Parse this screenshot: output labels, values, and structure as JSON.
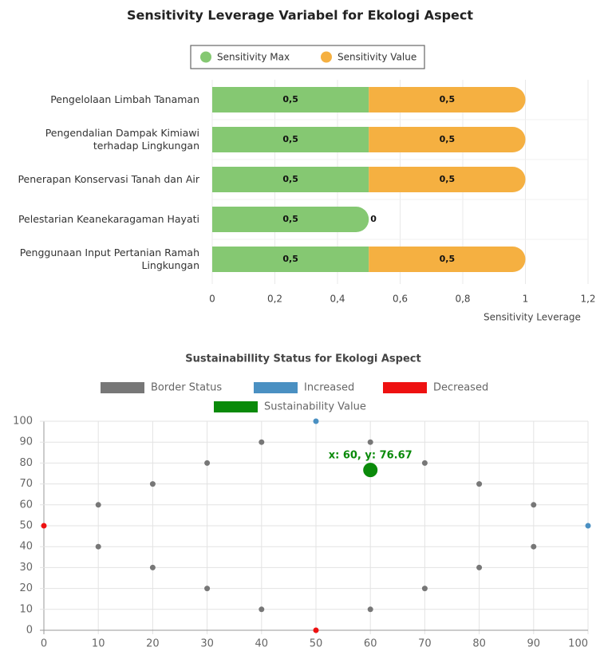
{
  "chart_data": [
    {
      "type": "hbar-stacked",
      "title": "Sensitivity Leverage Variabel for Ekologi Aspect",
      "categories": [
        "Pengelolaan Limbah Tanaman",
        "Pengendalian Dampak Kimiawi terhadap Lingkungan",
        "Penerapan Konservasi Tanah dan Air",
        "Pelestarian Keanekaragaman Hayati",
        "Penggunaan Input Pertanian Ramah Lingkungan"
      ],
      "series": [
        {
          "name": "Sensitivity Max",
          "color": "#85c872",
          "values": [
            0.5,
            0.5,
            0.5,
            0.5,
            0.5
          ],
          "value_labels": [
            "0,5",
            "0,5",
            "0,5",
            "0,5",
            "0,5"
          ]
        },
        {
          "name": "Sensitivity Value",
          "color": "#f5b041",
          "values": [
            0.5,
            0.5,
            0.5,
            0,
            0.5
          ],
          "value_labels": [
            "0,5",
            "0,5",
            "0,5",
            "0",
            "0,5"
          ]
        }
      ],
      "xlabel": "Sensitivity Leverage",
      "xlim": [
        0,
        1.2
      ],
      "xticks": [
        0,
        {
          "value": 0.2,
          "label": "0,2"
        },
        {
          "value": 0.4,
          "label": "0,4"
        },
        {
          "value": 0.6,
          "label": "0,6"
        },
        {
          "value": 0.8,
          "label": "0,8"
        },
        1,
        {
          "value": 1.2,
          "label": "1,2"
        }
      ],
      "grid": true,
      "legend": "top"
    },
    {
      "type": "scatter",
      "title": "Sustainabillity Status for Ekologi Aspect",
      "series": [
        {
          "name": "Border Status",
          "color": "#777777",
          "x": [
            10,
            20,
            30,
            40,
            60,
            70,
            80,
            90,
            90,
            80,
            70,
            60,
            40,
            30,
            20,
            10
          ],
          "values": [
            60,
            70,
            80,
            90,
            90,
            80,
            70,
            60,
            40,
            30,
            20,
            10,
            10,
            20,
            30,
            40
          ]
        },
        {
          "name": "Increased",
          "color": "#4a90c2",
          "x": [
            50,
            100
          ],
          "values": [
            100,
            50
          ]
        },
        {
          "name": "Decreased",
          "color": "#ee1111",
          "x": [
            0,
            50
          ],
          "values": [
            50,
            0
          ]
        },
        {
          "name": "Sustainability Value",
          "color": "#0a8a0a",
          "x": [
            60
          ],
          "values": [
            76.67
          ]
        }
      ],
      "annotation": "x: 60, y: 76.67",
      "xlim": [
        0,
        100
      ],
      "ylim": [
        0,
        100
      ],
      "xticks": [
        0,
        10,
        20,
        30,
        40,
        50,
        60,
        70,
        80,
        90,
        100
      ],
      "yticks": [
        0,
        10,
        20,
        30,
        40,
        50,
        60,
        70,
        80,
        90,
        100
      ],
      "grid": true,
      "legend": "top"
    }
  ]
}
